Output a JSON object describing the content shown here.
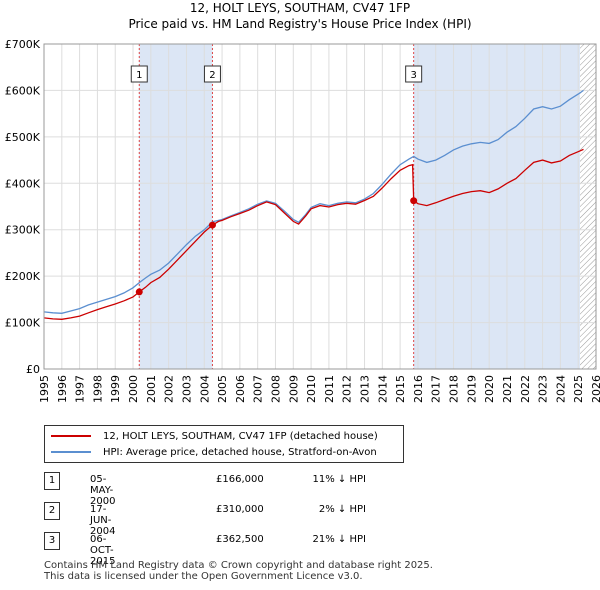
{
  "title_line1": "12, HOLT LEYS, SOUTHAM, CV47 1FP",
  "title_line2": "Price paid vs. HM Land Registry's House Price Index (HPI)",
  "legend": {
    "property_label": "12, HOLT LEYS, SOUTHAM, CV47 1FP (detached house)",
    "hpi_label": "HPI: Average price, detached house, Stratford-on-Avon"
  },
  "colors": {
    "property": "#cc0000",
    "hpi": "#5b8fd0",
    "shade": "#dce6f5",
    "grid": "#dddddd"
  },
  "sales": [
    {
      "num": "1",
      "date": "05-MAY-2000",
      "price": "£166,000",
      "hpi": "11% ↓ HPI"
    },
    {
      "num": "2",
      "date": "17-JUN-2004",
      "price": "£310,000",
      "hpi": "2% ↓ HPI"
    },
    {
      "num": "3",
      "date": "06-OCT-2015",
      "price": "£362,500",
      "hpi": "21% ↓ HPI"
    }
  ],
  "footer_line1": "Contains HM Land Registry data © Crown copyright and database right 2025.",
  "footer_line2": "This data is licensed under the Open Government Licence v3.0.",
  "chart_data": {
    "type": "line",
    "xlim": [
      1995,
      2026
    ],
    "ylim": [
      0,
      700000
    ],
    "y_ticks": [
      {
        "value": 0,
        "label": "£0"
      },
      {
        "value": 100000,
        "label": "£100K"
      },
      {
        "value": 200000,
        "label": "£200K"
      },
      {
        "value": 300000,
        "label": "£300K"
      },
      {
        "value": 400000,
        "label": "£400K"
      },
      {
        "value": 500000,
        "label": "£500K"
      },
      {
        "value": 600000,
        "label": "£600K"
      },
      {
        "value": 700000,
        "label": "£700K"
      }
    ],
    "x_ticks": [
      "1995",
      "1996",
      "1997",
      "1998",
      "1999",
      "2000",
      "2001",
      "2002",
      "2003",
      "2004",
      "2005",
      "2006",
      "2007",
      "2008",
      "2009",
      "2010",
      "2011",
      "2012",
      "2013",
      "2014",
      "2015",
      "2016",
      "2017",
      "2018",
      "2019",
      "2020",
      "2021",
      "2022",
      "2023",
      "2024",
      "2025",
      "2026"
    ],
    "shaded_ranges": [
      [
        2000.35,
        2004.46
      ],
      [
        2015.76,
        2025.1
      ]
    ],
    "hatched_from": 2025.1,
    "markers": [
      {
        "label": "1",
        "x": 2000.35,
        "y": 166000
      },
      {
        "label": "2",
        "x": 2004.46,
        "y": 310000
      },
      {
        "label": "3",
        "x": 2015.76,
        "y": 362500
      }
    ],
    "series": [
      {
        "name": "HPI: Average price, detached house, Stratford-on-Avon",
        "points": [
          [
            1995,
            123000
          ],
          [
            1995.5,
            121000
          ],
          [
            1996,
            120000
          ],
          [
            1996.5,
            125000
          ],
          [
            1997,
            130000
          ],
          [
            1997.5,
            138000
          ],
          [
            1998,
            144000
          ],
          [
            1998.5,
            150000
          ],
          [
            1999,
            156000
          ],
          [
            1999.5,
            164000
          ],
          [
            2000,
            175000
          ],
          [
            2000.35,
            186000
          ],
          [
            2000.7,
            196000
          ],
          [
            2001,
            204000
          ],
          [
            2001.5,
            213000
          ],
          [
            2002,
            228000
          ],
          [
            2002.5,
            248000
          ],
          [
            2003,
            268000
          ],
          [
            2003.5,
            286000
          ],
          [
            2004,
            300000
          ],
          [
            2004.46,
            317000
          ],
          [
            2004.8,
            320000
          ],
          [
            2005,
            322000
          ],
          [
            2005.5,
            330000
          ],
          [
            2006,
            337000
          ],
          [
            2006.5,
            345000
          ],
          [
            2007,
            355000
          ],
          [
            2007.5,
            362000
          ],
          [
            2008,
            357000
          ],
          [
            2008.5,
            340000
          ],
          [
            2009,
            322000
          ],
          [
            2009.3,
            316000
          ],
          [
            2009.7,
            333000
          ],
          [
            2010,
            348000
          ],
          [
            2010.5,
            356000
          ],
          [
            2011,
            352000
          ],
          [
            2011.5,
            357000
          ],
          [
            2012,
            360000
          ],
          [
            2012.5,
            358000
          ],
          [
            2013,
            366000
          ],
          [
            2013.5,
            378000
          ],
          [
            2014,
            398000
          ],
          [
            2014.5,
            420000
          ],
          [
            2015,
            440000
          ],
          [
            2015.5,
            452000
          ],
          [
            2015.76,
            458000
          ],
          [
            2016,
            452000
          ],
          [
            2016.5,
            445000
          ],
          [
            2017,
            450000
          ],
          [
            2017.5,
            460000
          ],
          [
            2018,
            472000
          ],
          [
            2018.5,
            480000
          ],
          [
            2019,
            485000
          ],
          [
            2019.5,
            488000
          ],
          [
            2020,
            486000
          ],
          [
            2020.5,
            494000
          ],
          [
            2021,
            510000
          ],
          [
            2021.5,
            522000
          ],
          [
            2022,
            540000
          ],
          [
            2022.5,
            560000
          ],
          [
            2023,
            565000
          ],
          [
            2023.5,
            560000
          ],
          [
            2024,
            566000
          ],
          [
            2024.5,
            580000
          ],
          [
            2025,
            592000
          ],
          [
            2025.3,
            600000
          ]
        ]
      },
      {
        "name": "12, HOLT LEYS, SOUTHAM, CV47 1FP (detached house)",
        "points": [
          [
            1995,
            110000
          ],
          [
            1995.5,
            108000
          ],
          [
            1996,
            107000
          ],
          [
            1996.5,
            110000
          ],
          [
            1997,
            114000
          ],
          [
            1997.5,
            121000
          ],
          [
            1998,
            128000
          ],
          [
            1998.5,
            134000
          ],
          [
            1999,
            140000
          ],
          [
            1999.5,
            147000
          ],
          [
            2000,
            155000
          ],
          [
            2000.35,
            166000
          ],
          [
            2000.7,
            176000
          ],
          [
            2001,
            186000
          ],
          [
            2001.5,
            197000
          ],
          [
            2002,
            215000
          ],
          [
            2002.5,
            235000
          ],
          [
            2003,
            255000
          ],
          [
            2003.5,
            275000
          ],
          [
            2004,
            295000
          ],
          [
            2004.46,
            310000
          ],
          [
            2004.8,
            318000
          ],
          [
            2005,
            320000
          ],
          [
            2005.5,
            328000
          ],
          [
            2006,
            335000
          ],
          [
            2006.5,
            342000
          ],
          [
            2007,
            352000
          ],
          [
            2007.5,
            360000
          ],
          [
            2008,
            354000
          ],
          [
            2008.5,
            336000
          ],
          [
            2009,
            318000
          ],
          [
            2009.3,
            312000
          ],
          [
            2009.7,
            330000
          ],
          [
            2010,
            345000
          ],
          [
            2010.5,
            352000
          ],
          [
            2011,
            349000
          ],
          [
            2011.5,
            354000
          ],
          [
            2012,
            357000
          ],
          [
            2012.5,
            355000
          ],
          [
            2013,
            363000
          ],
          [
            2013.5,
            372000
          ],
          [
            2014,
            390000
          ],
          [
            2014.5,
            410000
          ],
          [
            2015,
            428000
          ],
          [
            2015.5,
            438000
          ],
          [
            2015.7,
            440000
          ],
          [
            2015.76,
            362500
          ],
          [
            2016,
            356000
          ],
          [
            2016.5,
            352000
          ],
          [
            2017,
            358000
          ],
          [
            2017.5,
            365000
          ],
          [
            2018,
            372000
          ],
          [
            2018.5,
            378000
          ],
          [
            2019,
            382000
          ],
          [
            2019.5,
            384000
          ],
          [
            2020,
            380000
          ],
          [
            2020.5,
            388000
          ],
          [
            2021,
            400000
          ],
          [
            2021.5,
            410000
          ],
          [
            2022,
            428000
          ],
          [
            2022.5,
            445000
          ],
          [
            2023,
            450000
          ],
          [
            2023.5,
            444000
          ],
          [
            2024,
            448000
          ],
          [
            2024.5,
            460000
          ],
          [
            2025,
            468000
          ],
          [
            2025.3,
            473000
          ]
        ]
      }
    ]
  }
}
